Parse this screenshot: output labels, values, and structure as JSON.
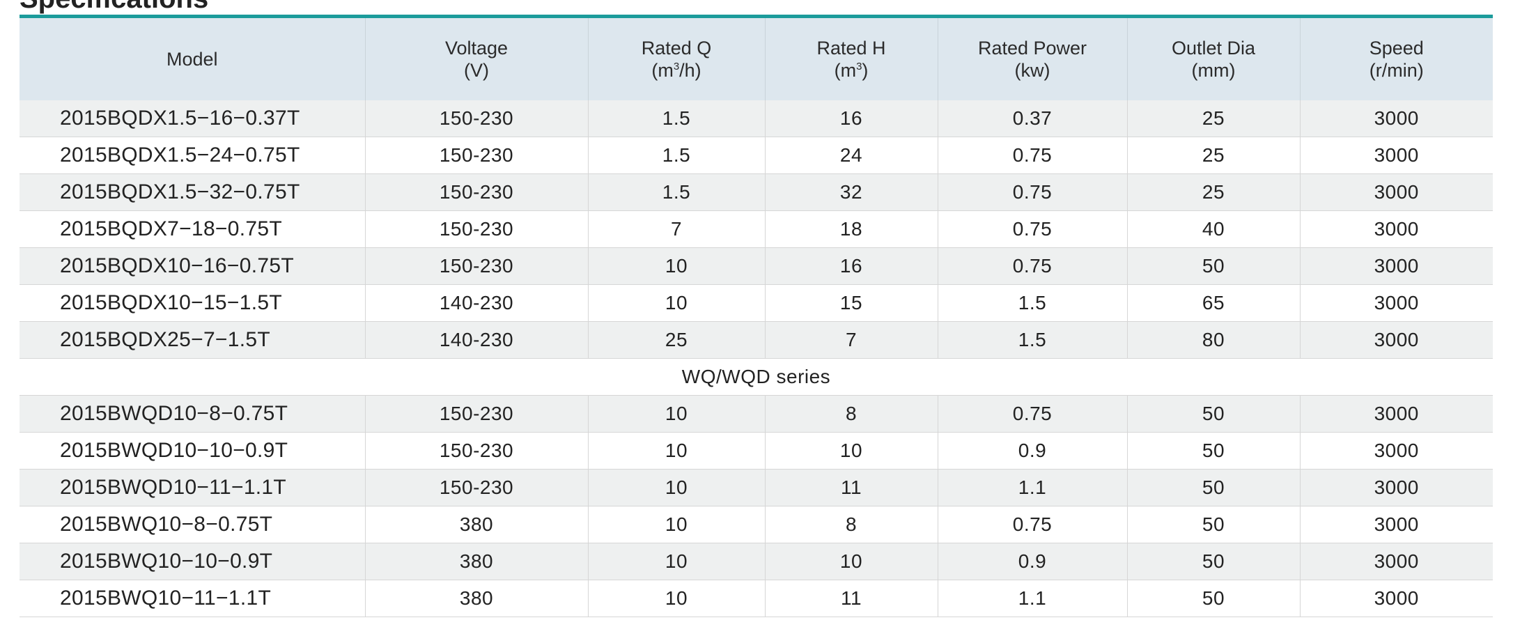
{
  "title_fragment": "Specifications",
  "headers": {
    "model": "Model",
    "voltage": "Voltage",
    "voltage_unit": "(V)",
    "rated_q": "Rated Q",
    "rated_q_unit_pre": "(m",
    "rated_q_unit_sup": "3",
    "rated_q_unit_post": "/h)",
    "rated_h": "Rated H",
    "rated_h_unit_pre": "(m",
    "rated_h_unit_sup": "3",
    "rated_h_unit_post": ")",
    "rated_power": "Rated Power",
    "rated_power_unit": "(kw)",
    "outlet_dia": "Outlet Dia",
    "outlet_dia_unit": "(mm)",
    "speed": "Speed",
    "speed_unit": "(r/min)"
  },
  "rows_group1": [
    {
      "model": "2015BQDX1.5−16−0.37T",
      "voltage": "150-230",
      "q": "1.5",
      "h": "16",
      "power": "0.37",
      "outlet": "25",
      "speed": "3000"
    },
    {
      "model": "2015BQDX1.5−24−0.75T",
      "voltage": "150-230",
      "q": "1.5",
      "h": "24",
      "power": "0.75",
      "outlet": "25",
      "speed": "3000"
    },
    {
      "model": "2015BQDX1.5−32−0.75T",
      "voltage": "150-230",
      "q": "1.5",
      "h": "32",
      "power": "0.75",
      "outlet": "25",
      "speed": "3000"
    },
    {
      "model": "2015BQDX7−18−0.75T",
      "voltage": "150-230",
      "q": "7",
      "h": "18",
      "power": "0.75",
      "outlet": "40",
      "speed": "3000"
    },
    {
      "model": "2015BQDX10−16−0.75T",
      "voltage": "150-230",
      "q": "10",
      "h": "16",
      "power": "0.75",
      "outlet": "50",
      "speed": "3000"
    },
    {
      "model": "2015BQDX10−15−1.5T",
      "voltage": "140-230",
      "q": "10",
      "h": "15",
      "power": "1.5",
      "outlet": "65",
      "speed": "3000"
    },
    {
      "model": "2015BQDX25−7−1.5T",
      "voltage": "140-230",
      "q": "25",
      "h": "7",
      "power": "1.5",
      "outlet": "80",
      "speed": "3000"
    }
  ],
  "series_label": "WQ/WQD series",
  "rows_group2": [
    {
      "model": "2015BWQD10−8−0.75T",
      "voltage": "150-230",
      "q": "10",
      "h": "8",
      "power": "0.75",
      "outlet": "50",
      "speed": "3000"
    },
    {
      "model": "2015BWQD10−10−0.9T",
      "voltage": "150-230",
      "q": "10",
      "h": "10",
      "power": "0.9",
      "outlet": "50",
      "speed": "3000"
    },
    {
      "model": "2015BWQD10−11−1.1T",
      "voltage": "150-230",
      "q": "10",
      "h": "11",
      "power": "1.1",
      "outlet": "50",
      "speed": "3000"
    },
    {
      "model": "2015BWQ10−8−0.75T",
      "voltage": "380",
      "q": "10",
      "h": "8",
      "power": "0.75",
      "outlet": "50",
      "speed": "3000"
    },
    {
      "model": "2015BWQ10−10−0.9T",
      "voltage": "380",
      "q": "10",
      "h": "10",
      "power": "0.9",
      "outlet": "50",
      "speed": "3000"
    },
    {
      "model": "2015BWQ10−11−1.1T",
      "voltage": "380",
      "q": "10",
      "h": "11",
      "power": "1.1",
      "outlet": "50",
      "speed": "3000"
    }
  ]
}
